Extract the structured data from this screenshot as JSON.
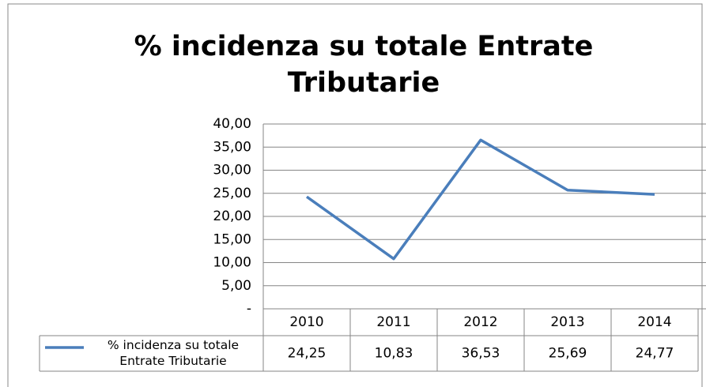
{
  "chart_data": {
    "type": "line",
    "title": "% incidenza su totale Entrate Tributarie",
    "categories": [
      "2010",
      "2011",
      "2012",
      "2013",
      "2014"
    ],
    "series": [
      {
        "name": "% incidenza su totale Entrate Tributarie",
        "color": "#4a7ebb",
        "values": [
          24.25,
          10.83,
          36.53,
          25.69,
          24.77
        ],
        "value_labels": [
          "24,25",
          "10,83",
          "36,53",
          "25,69",
          "24,77"
        ]
      }
    ],
    "ylim": [
      0,
      40
    ],
    "yticks": [
      {
        "value": 0,
        "label": "-"
      },
      {
        "value": 5,
        "label": "5,00"
      },
      {
        "value": 10,
        "label": "10,00"
      },
      {
        "value": 15,
        "label": "15,00"
      },
      {
        "value": 20,
        "label": "20,00"
      },
      {
        "value": 25,
        "label": "25,00"
      },
      {
        "value": 30,
        "label": "30,00"
      },
      {
        "value": 35,
        "label": "35,00"
      },
      {
        "value": 40,
        "label": "40,00"
      }
    ],
    "grid": true,
    "legend": "data-table"
  }
}
